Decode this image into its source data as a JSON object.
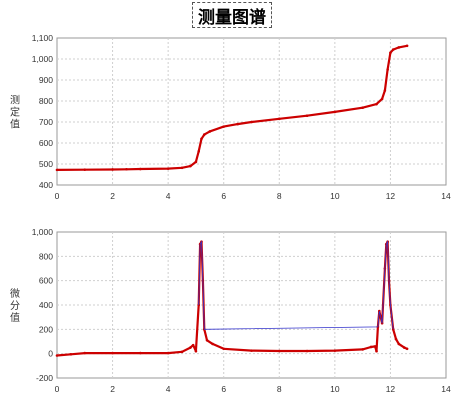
{
  "page_title": "测量图谱",
  "colors": {
    "series": "#cc0000",
    "derivative_peak": "#3333cc",
    "grid": "#cfcfcf",
    "plot_border": "#9a9a9a"
  },
  "chart_data": [
    {
      "type": "line",
      "ylabel": "测定值",
      "xlim": [
        0,
        14
      ],
      "ylim": [
        400,
        1100
      ],
      "xticks": [
        "0",
        "2",
        "4",
        "6",
        "8",
        "10",
        "12",
        "14"
      ],
      "yticks": [
        "400",
        "500",
        "600",
        "700",
        "800",
        "900",
        "1,000",
        "1,100"
      ],
      "grid": true,
      "series": [
        {
          "x": [
            0,
            1,
            2,
            2.5,
            3,
            4,
            4.5,
            4.8,
            5.0,
            5.1,
            5.2,
            5.3,
            5.5,
            6,
            6.5,
            7,
            8,
            9,
            10,
            11,
            11.5,
            11.7,
            11.8,
            11.9,
            12.0,
            12.1,
            12.3,
            12.6
          ],
          "y": [
            472,
            473,
            474,
            475,
            476,
            478,
            482,
            490,
            510,
            560,
            620,
            640,
            655,
            678,
            690,
            700,
            715,
            730,
            748,
            768,
            785,
            810,
            850,
            950,
            1030,
            1045,
            1055,
            1063
          ]
        }
      ]
    },
    {
      "type": "line",
      "ylabel": "微分值",
      "xlim": [
        0,
        14
      ],
      "ylim": [
        -200,
        1000
      ],
      "xticks": [
        "0",
        "2",
        "4",
        "6",
        "8",
        "10",
        "12",
        "14"
      ],
      "yticks": [
        "-200",
        "0",
        "200",
        "400",
        "600",
        "800",
        "1,000"
      ],
      "grid": true,
      "series": [
        {
          "x": [
            0,
            0.5,
            1,
            2,
            3,
            4,
            4.5,
            4.8,
            4.9,
            5.0,
            5.1,
            5.15,
            5.2,
            5.25,
            5.3,
            5.4,
            5.6,
            6,
            7,
            8,
            9,
            10,
            11,
            11.3,
            11.45,
            11.5,
            11.55,
            11.6,
            11.7,
            11.8,
            11.85,
            11.9,
            11.95,
            12.0,
            12.1,
            12.2,
            12.3,
            12.5,
            12.6
          ],
          "y": [
            -15,
            -5,
            5,
            5,
            5,
            5,
            15,
            50,
            70,
            20,
            400,
            900,
            920,
            600,
            200,
            110,
            80,
            40,
            25,
            22,
            22,
            25,
            35,
            55,
            60,
            20,
            220,
            350,
            250,
            700,
            900,
            920,
            600,
            400,
            200,
            120,
            80,
            50,
            40
          ]
        }
      ]
    }
  ]
}
